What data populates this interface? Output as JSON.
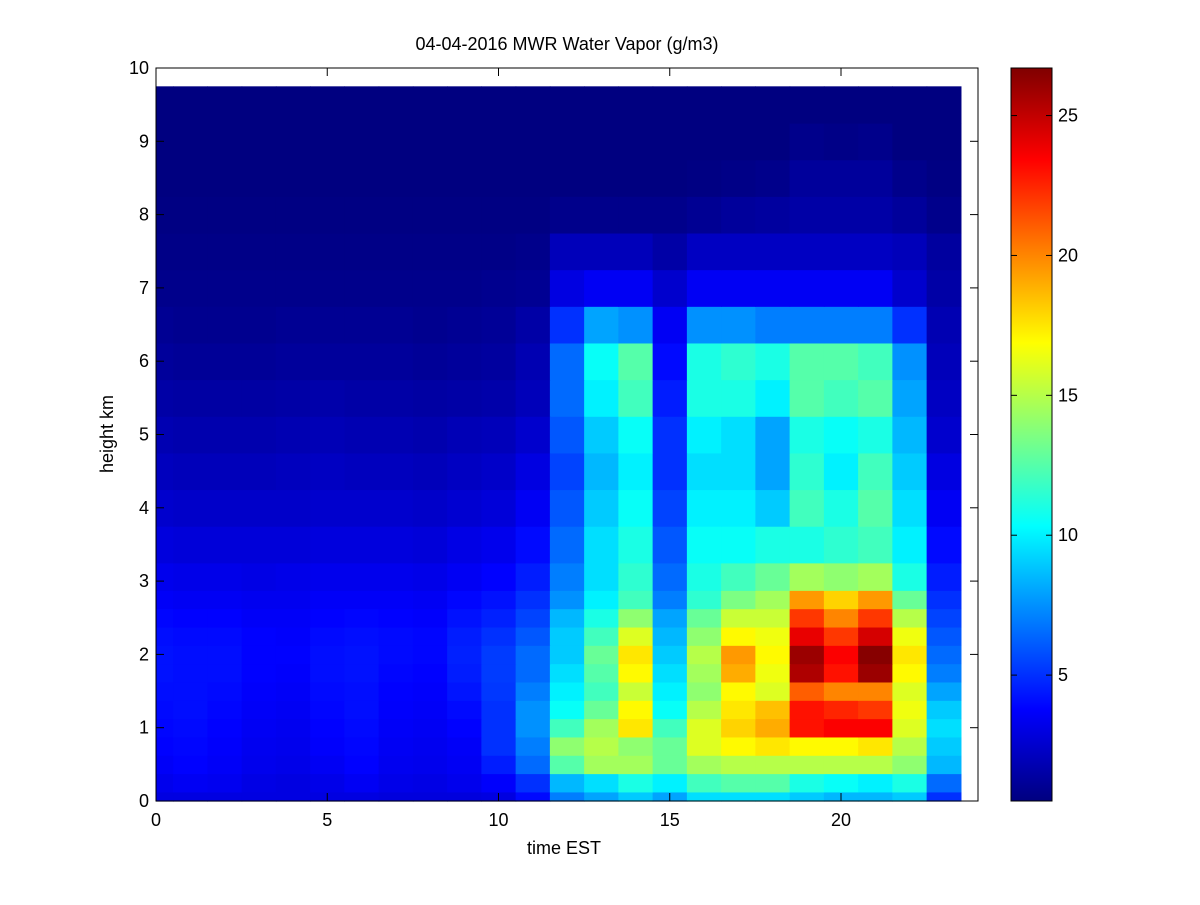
{
  "chart_data": {
    "type": "heatmap",
    "title": "04-04-2016 MWR Water Vapor (g/m3)",
    "xlabel": "time EST",
    "ylabel": "height km",
    "xlim": [
      0,
      24
    ],
    "ylim": [
      0,
      10
    ],
    "xticks": [
      0,
      5,
      10,
      15,
      20
    ],
    "yticks": [
      0,
      1,
      2,
      3,
      4,
      5,
      6,
      7,
      8,
      9,
      10
    ],
    "colorbar": {
      "colormap": "jet",
      "limits": [
        0.5,
        26.7
      ],
      "ticks": [
        5,
        10,
        15,
        20,
        25
      ]
    },
    "time_hours": [
      0,
      1,
      2,
      3,
      4,
      5,
      6,
      7,
      8,
      9,
      10,
      11,
      12,
      13,
      14,
      15,
      16,
      17,
      18,
      19,
      20,
      21,
      22,
      23
    ],
    "height_km": [
      0.0,
      0.25,
      0.5,
      0.75,
      1.0,
      1.25,
      1.5,
      1.75,
      2.0,
      2.25,
      2.5,
      2.75,
      3.0,
      3.5,
      4.0,
      4.5,
      5.0,
      5.5,
      6.0,
      6.5,
      7.0,
      7.5,
      8.0,
      8.5,
      9.0,
      9.5,
      9.75
    ],
    "values": [
      [
        3.0,
        3.0,
        3.0,
        3.0,
        3.0,
        3.0,
        3.0,
        2.9,
        2.9,
        2.9,
        3.0,
        4.0,
        7.0,
        8.0,
        9.0,
        8.0,
        9.5,
        9.5,
        9.5,
        9.0,
        8.5,
        8.5,
        9.0,
        5.0
      ],
      [
        3.3,
        3.5,
        3.4,
        3.1,
        3.0,
        3.2,
        3.5,
        3.2,
        3.1,
        3.3,
        3.7,
        5.0,
        8.5,
        9.5,
        11.0,
        10.0,
        12.0,
        12.5,
        12.5,
        11.0,
        10.5,
        10.0,
        11.0,
        6.5
      ],
      [
        3.6,
        3.8,
        3.6,
        3.3,
        3.2,
        3.5,
        3.8,
        3.4,
        3.3,
        3.5,
        4.5,
        6.5,
        12.5,
        14.5,
        14.5,
        13.0,
        14.5,
        15.0,
        15.0,
        15.0,
        15.0,
        15.0,
        14.0,
        8.5
      ],
      [
        3.8,
        3.9,
        3.7,
        3.4,
        3.3,
        3.7,
        3.9,
        3.5,
        3.4,
        3.6,
        5.0,
        7.0,
        14.0,
        15.0,
        14.0,
        13.0,
        16.0,
        17.0,
        17.5,
        17.0,
        17.0,
        17.5,
        15.0,
        9.0
      ],
      [
        3.9,
        4.0,
        3.8,
        3.5,
        3.4,
        3.8,
        4.0,
        3.6,
        3.5,
        3.8,
        5.0,
        7.5,
        12.0,
        14.5,
        17.5,
        12.0,
        16.0,
        18.0,
        19.0,
        23.0,
        23.5,
        23.5,
        16.0,
        9.5
      ],
      [
        4.0,
        4.1,
        3.9,
        3.6,
        3.5,
        3.9,
        4.1,
        3.7,
        3.6,
        4.0,
        5.0,
        7.5,
        10.5,
        13.0,
        17.0,
        10.5,
        15.0,
        17.5,
        18.5,
        23.0,
        22.5,
        22.0,
        16.5,
        9.0
      ],
      [
        4.1,
        4.1,
        4.0,
        3.7,
        3.6,
        4.0,
        4.1,
        3.8,
        3.7,
        4.3,
        5.2,
        7.0,
        10.0,
        12.0,
        15.5,
        10.0,
        14.0,
        17.0,
        16.0,
        21.0,
        20.0,
        20.0,
        16.0,
        8.0
      ],
      [
        4.2,
        4.1,
        4.1,
        3.8,
        3.7,
        4.1,
        4.2,
        3.9,
        3.8,
        4.5,
        5.3,
        6.5,
        9.5,
        12.5,
        17.0,
        9.5,
        14.5,
        19.0,
        16.5,
        25.5,
        23.0,
        26.0,
        17.0,
        7.0
      ],
      [
        4.2,
        4.1,
        4.1,
        3.8,
        3.8,
        4.1,
        4.2,
        4.0,
        3.9,
        4.6,
        5.3,
        6.5,
        9.0,
        13.0,
        17.5,
        9.0,
        15.0,
        19.5,
        17.0,
        26.0,
        23.5,
        26.5,
        17.5,
        6.5
      ],
      [
        4.1,
        4.0,
        4.0,
        3.8,
        3.7,
        4.0,
        4.1,
        4.0,
        3.9,
        4.5,
        5.0,
        6.0,
        9.0,
        12.0,
        16.0,
        8.5,
        14.0,
        17.0,
        16.5,
        24.0,
        22.0,
        24.5,
        16.5,
        6.0
      ],
      [
        3.9,
        3.8,
        3.8,
        3.6,
        3.6,
        3.8,
        3.9,
        3.8,
        3.7,
        4.2,
        4.6,
        5.5,
        8.5,
        11.0,
        14.0,
        8.0,
        13.0,
        15.5,
        15.5,
        22.0,
        20.0,
        22.0,
        15.0,
        5.5
      ],
      [
        3.6,
        3.5,
        3.5,
        3.4,
        3.4,
        3.6,
        3.6,
        3.6,
        3.5,
        3.9,
        4.2,
        5.0,
        7.5,
        10.0,
        12.0,
        7.0,
        11.5,
        13.5,
        14.5,
        19.5,
        18.0,
        19.5,
        13.0,
        5.0
      ],
      [
        3.3,
        3.2,
        3.2,
        3.1,
        3.2,
        3.3,
        3.3,
        3.3,
        3.2,
        3.5,
        3.8,
        4.5,
        7.0,
        9.5,
        11.5,
        6.5,
        11.0,
        12.0,
        13.0,
        14.5,
        14.0,
        14.5,
        11.0,
        4.5
      ],
      [
        2.9,
        2.8,
        2.8,
        2.8,
        2.8,
        2.9,
        2.9,
        2.9,
        2.8,
        3.1,
        3.3,
        4.0,
        6.5,
        9.5,
        11.0,
        6.0,
        10.5,
        10.5,
        11.0,
        11.0,
        11.5,
        12.0,
        10.0,
        4.0
      ],
      [
        2.5,
        2.4,
        2.4,
        2.4,
        2.4,
        2.5,
        2.5,
        2.5,
        2.4,
        2.6,
        2.8,
        3.5,
        6.0,
        9.0,
        10.5,
        5.5,
        10.0,
        10.0,
        9.0,
        12.0,
        11.0,
        12.5,
        9.5,
        3.5
      ],
      [
        2.1,
        2.0,
        2.0,
        2.0,
        2.1,
        2.2,
        2.1,
        2.1,
        2.0,
        2.2,
        2.4,
        3.0,
        5.5,
        8.5,
        10.0,
        5.0,
        9.5,
        9.5,
        8.0,
        11.5,
        10.0,
        12.0,
        9.0,
        3.0
      ],
      [
        1.8,
        1.7,
        1.7,
        1.7,
        1.8,
        1.9,
        1.8,
        1.8,
        1.7,
        1.9,
        2.0,
        2.5,
        6.0,
        9.0,
        10.5,
        5.0,
        10.0,
        9.5,
        8.0,
        11.0,
        10.5,
        11.0,
        8.5,
        2.5
      ],
      [
        1.5,
        1.4,
        1.4,
        1.4,
        1.5,
        1.6,
        1.5,
        1.5,
        1.4,
        1.5,
        1.6,
        2.0,
        6.5,
        10.0,
        12.0,
        4.5,
        11.0,
        11.0,
        10.0,
        12.5,
        12.0,
        12.5,
        8.0,
        2.2
      ],
      [
        1.2,
        1.1,
        1.1,
        1.1,
        1.2,
        1.2,
        1.2,
        1.2,
        1.1,
        1.2,
        1.3,
        1.8,
        6.5,
        10.5,
        12.5,
        4.0,
        11.0,
        11.5,
        11.0,
        12.5,
        12.5,
        12.0,
        7.5,
        2.0
      ],
      [
        1.0,
        0.9,
        0.9,
        0.9,
        1.0,
        1.0,
        1.0,
        1.0,
        0.9,
        1.0,
        1.1,
        1.5,
        5.0,
        8.0,
        7.5,
        3.5,
        7.5,
        7.5,
        7.0,
        7.0,
        7.0,
        7.0,
        5.0,
        1.8
      ],
      [
        0.8,
        0.8,
        0.8,
        0.8,
        0.8,
        0.8,
        0.8,
        0.8,
        0.8,
        0.8,
        0.9,
        1.0,
        3.0,
        3.5,
        3.5,
        2.5,
        3.5,
        3.5,
        3.5,
        3.5,
        3.5,
        3.5,
        2.5,
        1.5
      ],
      [
        0.7,
        0.7,
        0.7,
        0.7,
        0.7,
        0.7,
        0.7,
        0.7,
        0.7,
        0.7,
        0.7,
        0.8,
        2.0,
        2.0,
        2.0,
        1.5,
        2.2,
        2.2,
        2.2,
        2.2,
        2.2,
        2.2,
        2.0,
        1.3
      ],
      [
        0.6,
        0.6,
        0.6,
        0.6,
        0.6,
        0.6,
        0.6,
        0.6,
        0.6,
        0.6,
        0.6,
        0.6,
        0.8,
        0.8,
        0.8,
        0.8,
        1.0,
        1.2,
        1.3,
        1.5,
        1.5,
        1.5,
        1.2,
        0.8
      ],
      [
        0.5,
        0.5,
        0.5,
        0.5,
        0.5,
        0.5,
        0.5,
        0.5,
        0.5,
        0.5,
        0.5,
        0.5,
        0.5,
        0.5,
        0.5,
        0.5,
        0.6,
        0.7,
        0.8,
        1.2,
        1.2,
        1.2,
        0.8,
        0.6
      ],
      [
        0.5,
        0.5,
        0.5,
        0.5,
        0.5,
        0.5,
        0.5,
        0.5,
        0.5,
        0.5,
        0.5,
        0.5,
        0.5,
        0.5,
        0.5,
        0.5,
        0.5,
        0.5,
        0.5,
        0.8,
        0.7,
        0.8,
        0.5,
        0.5
      ],
      [
        0.5,
        0.5,
        0.5,
        0.5,
        0.5,
        0.5,
        0.5,
        0.5,
        0.5,
        0.5,
        0.5,
        0.5,
        0.5,
        0.5,
        0.5,
        0.5,
        0.5,
        0.5,
        0.5,
        0.5,
        0.5,
        0.5,
        0.5,
        0.5
      ],
      [
        0.5,
        0.5,
        0.5,
        0.5,
        0.5,
        0.5,
        0.5,
        0.5,
        0.5,
        0.5,
        0.5,
        0.5,
        0.5,
        0.5,
        0.5,
        0.5,
        0.5,
        0.5,
        0.5,
        0.5,
        0.5,
        0.5,
        0.5,
        0.5
      ]
    ]
  }
}
